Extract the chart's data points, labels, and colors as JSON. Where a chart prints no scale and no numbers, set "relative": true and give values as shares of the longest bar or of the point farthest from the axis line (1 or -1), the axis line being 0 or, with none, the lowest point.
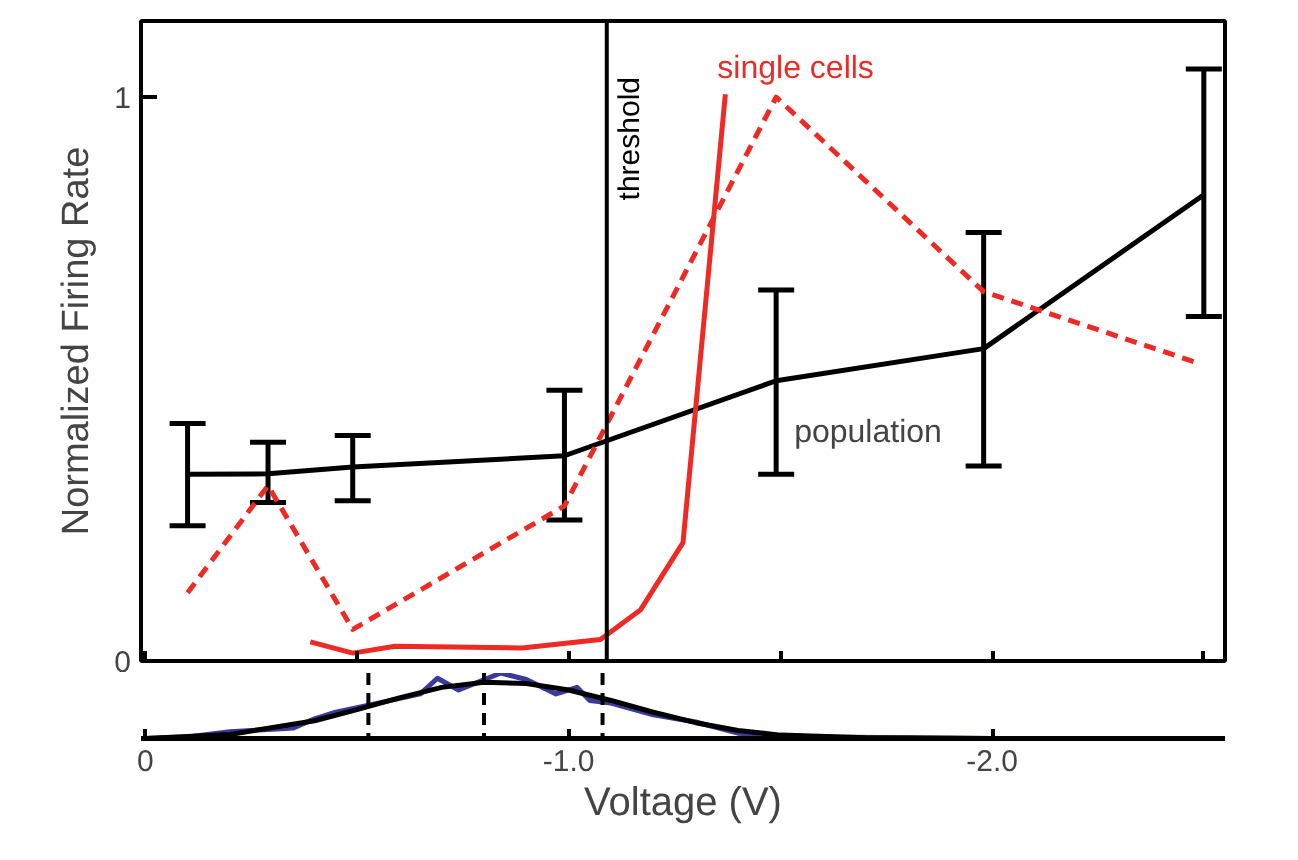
{
  "chart_data": [
    {
      "type": "line",
      "ylabel": "Normalized Firing Rate",
      "xlim": [
        0.01,
        -2.55
      ],
      "ylim": [
        0,
        1.135
      ],
      "yticks": [
        0,
        1
      ],
      "tick_labels": "y",
      "grid": false,
      "marker": "none",
      "series": [
        {
          "color": "#000000",
          "x": [
            -0.1,
            -0.29,
            -0.49,
            -0.99,
            -1.49,
            -1.98,
            -2.5
          ],
          "values": [
            0.331,
            0.332,
            0.344,
            0.364,
            0.497,
            0.554,
            0.827
          ],
          "errors": [
            [
              0.24,
              0.421
            ],
            [
              0.281,
              0.388
            ],
            [
              0.284,
              0.4
            ],
            [
              0.25,
              0.48
            ],
            [
              0.331,
              0.658
            ],
            [
              0.346,
              0.76
            ],
            [
              0.611,
              1.05
            ]
          ]
        },
        {
          "color": "#ee2a24",
          "line_style": "dashed",
          "x": [
            -0.1,
            -0.29,
            -0.49,
            -0.99,
            -1.49,
            -1.98,
            -2.48
          ],
          "values": [
            0.121,
            0.311,
            0.056,
            0.275,
            1.0,
            0.655,
            0.53
          ]
        },
        {
          "name": "single cells",
          "color": "#ee2a24",
          "line_style": "solid",
          "x": [
            -0.39,
            -0.49,
            -0.59,
            -0.89,
            -1.075,
            -1.17,
            -1.27,
            -1.37
          ],
          "values": [
            0.034,
            0.014,
            0.026,
            0.023,
            0.038,
            0.091,
            0.21,
            1.005
          ]
        }
      ],
      "ref_lines": [
        {
          "axis": "x",
          "value": -1.09,
          "label": "threshold",
          "color": "#000000"
        }
      ],
      "annotations": [
        {
          "text": "population",
          "x": -1.49,
          "y": 0.497
        }
      ]
    },
    {
      "type": "line",
      "relative": true,
      "xlabel": "Voltage (V)",
      "xlim": [
        0.01,
        -2.55
      ],
      "xticks": [
        0,
        {
          "value": -1,
          "label": "-1.0"
        },
        {
          "value": -2,
          "label": "-2.0"
        }
      ],
      "tick_labels": "x",
      "grid": false,
      "series": [
        {
          "color": "#3a3a9c",
          "x": [
            0,
            -0.1,
            -0.2,
            -0.3,
            -0.35,
            -0.4,
            -0.45,
            -0.55,
            -0.65,
            -0.69,
            -0.74,
            -0.84,
            -0.9,
            -0.97,
            -1.02,
            -1.05,
            -1.1,
            -1.2,
            -1.3,
            -1.4,
            -1.5,
            -1.6,
            -2.0,
            -2.55
          ],
          "values": [
            0,
            0.02,
            0.1,
            0.14,
            0.16,
            0.3,
            0.4,
            0.54,
            0.68,
            0.92,
            0.74,
            1.0,
            0.9,
            0.68,
            0.78,
            0.58,
            0.54,
            0.36,
            0.25,
            0.08,
            0.04,
            0.02,
            0,
            0
          ]
        },
        {
          "color": "#000000",
          "x": [
            0,
            -0.2,
            -0.4,
            -0.5,
            -0.6,
            -0.7,
            -0.8,
            -0.9,
            -1.0,
            -1.1,
            -1.2,
            -1.3,
            -1.4,
            -1.5,
            -1.7,
            -2.0,
            -2.55
          ],
          "values": [
            0,
            0.06,
            0.27,
            0.44,
            0.62,
            0.78,
            0.86,
            0.84,
            0.74,
            0.58,
            0.4,
            0.24,
            0.12,
            0.05,
            0.01,
            0,
            0
          ]
        }
      ],
      "ref_lines": [
        {
          "axis": "x",
          "value": -0.527,
          "line_style": "dashed",
          "color": "#000000"
        },
        {
          "axis": "x",
          "value": -0.8,
          "line_style": "dashed",
          "color": "#000000"
        },
        {
          "axis": "x",
          "value": -1.08,
          "line_style": "dashed",
          "color": "#000000"
        }
      ]
    }
  ]
}
